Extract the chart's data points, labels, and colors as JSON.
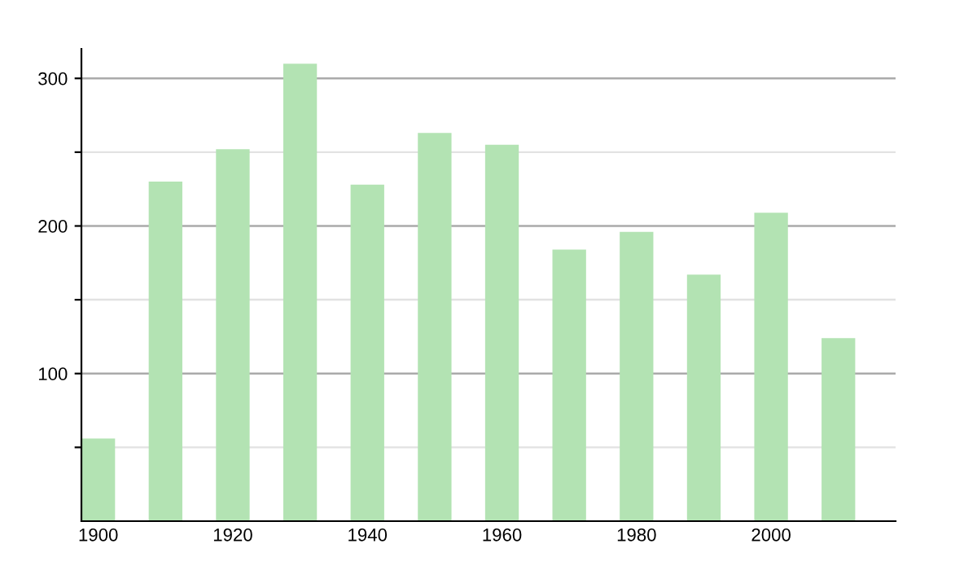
{
  "chart_data": {
    "type": "bar",
    "x": [
      1900,
      1910,
      1920,
      1930,
      1940,
      1950,
      1960,
      1970,
      1980,
      1990,
      2000,
      2010
    ],
    "values": [
      56,
      230,
      252,
      310,
      228,
      263,
      255,
      184,
      196,
      167,
      209,
      124
    ],
    "color": "#b3e3b3",
    "xlim": [
      1897.5,
      2018.5
    ],
    "xticks": [
      1900,
      1920,
      1940,
      1960,
      1980,
      2000
    ],
    "ylim": [
      0,
      320
    ],
    "yticks": [
      {
        "value": 50,
        "label": null
      },
      100,
      {
        "value": 150,
        "label": null
      },
      200,
      {
        "value": 250,
        "label": null
      },
      300
    ],
    "grid": "y"
  }
}
